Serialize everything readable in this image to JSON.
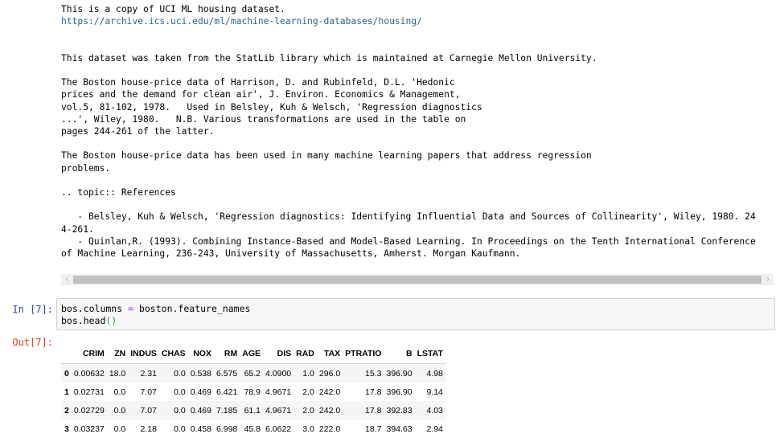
{
  "output": {
    "line1": "This is a copy of UCI ML housing dataset.",
    "url": "https://archive.ics.uci.edu/ml/machine-learning-databases/housing/",
    "para_statlib": "This dataset was taken from the StatLib library which is maintained at Carnegie Mellon University.",
    "para_harrison": "The Boston house-price data of Harrison, D. and Rubinfeld, D.L. 'Hedonic\nprices and the demand for clean air', J. Environ. Economics & Management,\nvol.5, 81-102, 1978.   Used in Belsley, Kuh & Welsch, 'Regression diagnostics\n...', Wiley, 1980.   N.B. Various transformations are used in the table on\npages 244-261 of the latter.",
    "para_used": "The Boston house-price data has been used in many machine learning papers that address regression\nproblems.",
    "topic": ".. topic:: References",
    "ref1": "   - Belsley, Kuh & Welsch, 'Regression diagnostics: Identifying Influential Data and Sources of Collinearity', Wiley, 1980. 24\n4-261.",
    "ref2": "   - Quinlan,R. (1993). Combining Instance-Based and Model-Based Learning. In Proceedings on the Tenth International Conference\nof Machine Learning, 236-243, University of Massachusetts, Amherst. Morgan Kaufmann."
  },
  "scrollbar": {
    "left_arrow": "‹",
    "right_arrow": "›"
  },
  "input_cell": {
    "prompt": "In [7]:",
    "line1_a": "bos.columns ",
    "line1_op": "=",
    "line1_b": " boston.feature_names",
    "line2_a": "bos.head",
    "line2_paren": "()"
  },
  "output_cell": {
    "prompt": "Out[7]:"
  },
  "dataframe": {
    "columns": [
      "",
      "CRIM",
      "ZN",
      "INDUS",
      "CHAS",
      "NOX",
      "RM",
      "AGE",
      "DIS",
      "RAD",
      "TAX",
      "PTRATIO",
      "B",
      "LSTAT"
    ],
    "rows": [
      [
        "0",
        "0.00632",
        "18.0",
        "2.31",
        "0.0",
        "0.538",
        "6.575",
        "65.2",
        "4.0900",
        "1.0",
        "296.0",
        "15.3",
        "396.90",
        "4.98"
      ],
      [
        "1",
        "0.02731",
        "0.0",
        "7.07",
        "0.0",
        "0.469",
        "6.421",
        "78.9",
        "4.9671",
        "2.0",
        "242.0",
        "17.8",
        "396.90",
        "9.14"
      ],
      [
        "2",
        "0.02729",
        "0.0",
        "7.07",
        "0.0",
        "0.469",
        "7.185",
        "61.1",
        "4.9671",
        "2.0",
        "242.0",
        "17.8",
        "392.83",
        "4.03"
      ],
      [
        "3",
        "0.03237",
        "0.0",
        "2.18",
        "0.0",
        "0.458",
        "6.998",
        "45.8",
        "6.0622",
        "3.0",
        "222.0",
        "18.7",
        "394.63",
        "2.94"
      ]
    ]
  }
}
